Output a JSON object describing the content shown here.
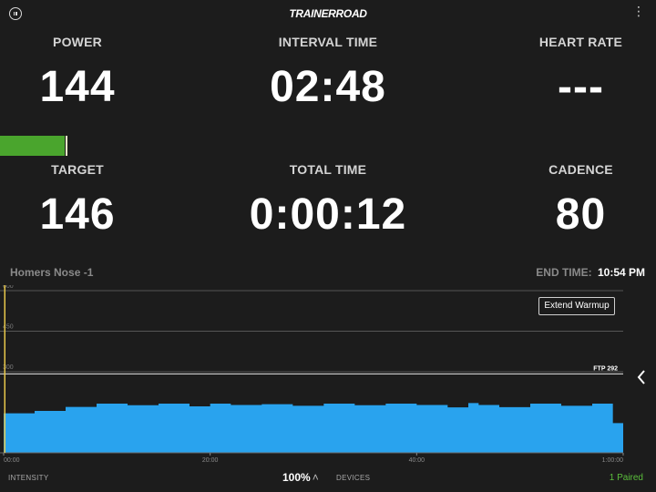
{
  "header": {
    "logo_text": "TRAINERROAD",
    "pause_icon": "pause-icon",
    "menu_icon": "more-icon"
  },
  "metrics": {
    "power": {
      "label": "POWER",
      "value": "144"
    },
    "interval_time": {
      "label": "INTERVAL TIME",
      "value": "02:48"
    },
    "heart_rate": {
      "label": "HEART RATE",
      "value": "---"
    },
    "target": {
      "label": "TARGET",
      "value": "146"
    },
    "total_time": {
      "label": "TOTAL TIME",
      "value": "0:00:12"
    },
    "cadence": {
      "label": "CADENCE",
      "value": "80"
    }
  },
  "power_bar": {
    "power": 144,
    "target": 146,
    "fill_fraction": 0.415,
    "color": "#4aa52d"
  },
  "workout": {
    "name": "Homers Nose -1",
    "end_time_label": "END TIME:",
    "end_time_value": "10:54 PM"
  },
  "extend_button_label": "Extend Warmup",
  "side_chevron_icon": "chevron-left-icon",
  "chart_data": {
    "type": "area",
    "title": "",
    "xlabel": "",
    "ylabel": "",
    "y_ticks": [
      "600",
      "450",
      "300"
    ],
    "ylim": [
      0,
      600
    ],
    "x_ticks": [
      "00:00",
      "20:00",
      "40:00",
      "1:00:00"
    ],
    "xlim_minutes": [
      0,
      60
    ],
    "ftp_label": "FTP 292",
    "ftp_value": 292,
    "progress_minutes": 0.2,
    "fill_color": "#29a3ee",
    "series": [
      {
        "x": [
          0,
          3,
          6,
          9,
          12,
          15,
          18,
          20,
          22,
          25,
          28,
          31,
          34,
          37,
          40,
          43,
          45,
          46,
          48,
          51,
          54,
          57,
          59,
          60
        ],
        "y": [
          146,
          155,
          170,
          182,
          176,
          182,
          172,
          182,
          177,
          180,
          174,
          182,
          176,
          182,
          177,
          168,
          184,
          177,
          169,
          182,
          174,
          182,
          110,
          95
        ]
      }
    ]
  },
  "bottom": {
    "intensity_label": "INTENSITY",
    "intensity_value": "100%",
    "devices_label": "DEVICES",
    "paired": "1 Paired"
  }
}
